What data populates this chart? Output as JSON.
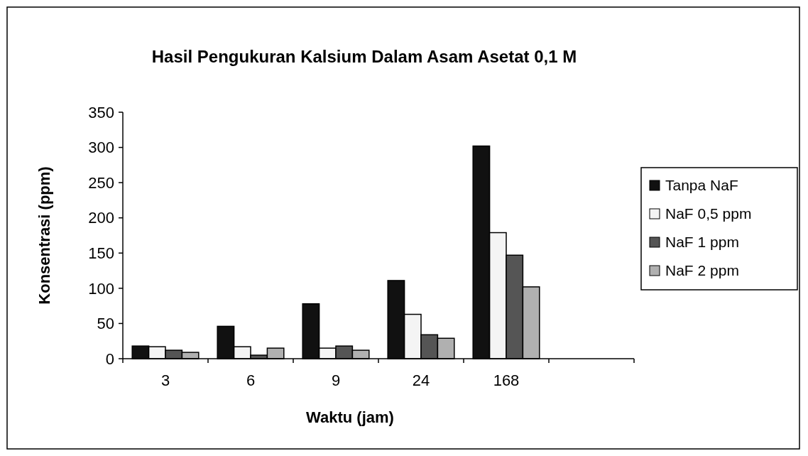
{
  "chart_data": {
    "type": "bar",
    "title": "Hasil Pengukuran Kalsium Dalam Asam Asetat 0,1 M",
    "xlabel": "Waktu (jam)",
    "ylabel": "Konsentrasi (ppm)",
    "categories": [
      "3",
      "6",
      "9",
      "24",
      "168",
      null
    ],
    "series": [
      {
        "name": "Tanpa NaF",
        "color": "#111111",
        "values": [
          18,
          46,
          78,
          111,
          302,
          null
        ]
      },
      {
        "name": "NaF 0,5 ppm",
        "color": "#f4f4f4",
        "values": [
          17,
          17,
          15,
          63,
          179,
          null
        ]
      },
      {
        "name": "NaF 1 ppm",
        "color": "#555555",
        "values": [
          12,
          5,
          18,
          34,
          147,
          null
        ]
      },
      {
        "name": "NaF 2 ppm",
        "color": "#b0b0b0",
        "values": [
          9,
          15,
          12,
          29,
          102,
          null
        ]
      }
    ],
    "ylim": [
      0,
      350
    ],
    "yticks": [
      0,
      50,
      100,
      150,
      200,
      250,
      300,
      350
    ],
    "legend": "right",
    "grid": false
  }
}
